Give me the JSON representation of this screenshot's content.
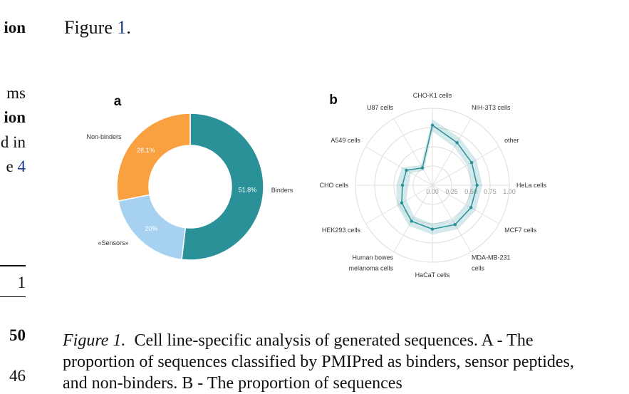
{
  "left_fragments": {
    "line1": "ion",
    "line2": "ms",
    "line3": "ion",
    "line4": "d in",
    "line5_text": "e ",
    "line5_link": "4",
    "table_cell1": "1",
    "table_cell2": "50",
    "table_cell3": "46"
  },
  "figure_ref": {
    "prefix": "Figure ",
    "number": "1",
    "suffix": "."
  },
  "panel_a": {
    "label": "a",
    "colors": {
      "binders": "#2a9199",
      "sensors": "#a6d1f0",
      "non_binders": "#f9a040"
    },
    "slices": [
      {
        "name": "Binders",
        "percent_label": "51.8%",
        "value": 51.8
      },
      {
        "name": "«Sensors»",
        "percent_label": "20%",
        "value": 20.0
      },
      {
        "name": "Non-binders",
        "percent_label": "28.1%",
        "value": 28.1
      }
    ]
  },
  "panel_b": {
    "label": "b",
    "color": "#2a9199",
    "radial_ticks": [
      "0.00",
      "0.25",
      "0.50",
      "0.75",
      "1.00"
    ],
    "axes": [
      {
        "label": [
          "CHO-K1 cells"
        ],
        "value": 0.78,
        "band": 0.08
      },
      {
        "label": [
          "NIH-3T3 cells"
        ],
        "value": 0.64,
        "band": 0.07
      },
      {
        "label": [
          "other"
        ],
        "value": 0.59,
        "band": 0.07
      },
      {
        "label": [
          "HeLa cells"
        ],
        "value": 0.58,
        "band": 0.07
      },
      {
        "label": [
          "MCF7 cells"
        ],
        "value": 0.58,
        "band": 0.07
      },
      {
        "label": [
          "MDA-MB-231",
          "cells"
        ],
        "value": 0.59,
        "band": 0.07
      },
      {
        "label": [
          "HaCaT cells"
        ],
        "value": 0.57,
        "band": 0.07
      },
      {
        "label": [
          "Human bowes",
          "melanoma cells"
        ],
        "value": 0.54,
        "band": 0.07
      },
      {
        "label": [
          "HEK293 cells"
        ],
        "value": 0.46,
        "band": 0.07
      },
      {
        "label": [
          "CHO cells"
        ],
        "value": 0.39,
        "band": 0.08
      },
      {
        "label": [
          "A549 cells"
        ],
        "value": 0.39,
        "band": 0.07
      },
      {
        "label": [
          "U87 cells"
        ],
        "value": 0.26,
        "band": 0.04
      }
    ]
  },
  "caption": {
    "label": "Figure 1.",
    "text": "Cell line-specific analysis of generated sequences. A - The proportion of sequences classified by PMIPred as binders, sensor peptides, and non-binders. B - The proportion of sequences"
  }
}
